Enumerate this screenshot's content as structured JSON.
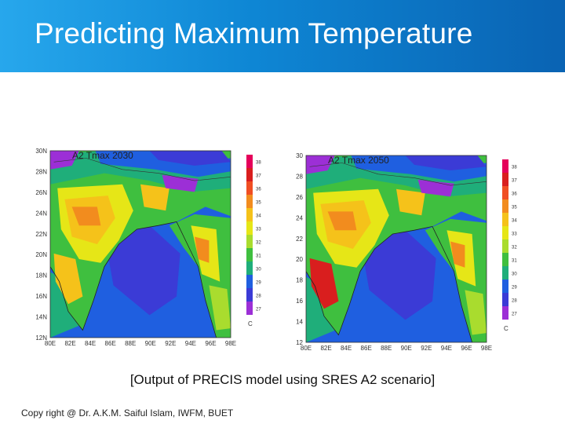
{
  "slide": {
    "title": "Predicting Maximum Temperature",
    "caption": "[Output of PRECIS model using SRES A2 scenario]",
    "footer": "Copy right @ Dr. A.K.M. Saiful Islam, IWFM, BUET"
  },
  "maps": [
    {
      "title": "A2 Tmax 2030",
      "lat_labels": [
        "30N",
        "28N",
        "26N",
        "24N",
        "22N",
        "20N",
        "18N",
        "16N",
        "14N",
        "12N"
      ],
      "lon_labels": [
        "80E",
        "82E",
        "84E",
        "86E",
        "88E",
        "90E",
        "92E",
        "94E",
        "96E",
        "98E"
      ],
      "unit": "C",
      "legend_values": [
        "38",
        "37",
        "36",
        "35",
        "34",
        "33",
        "32",
        "31",
        "30",
        "29",
        "28",
        "27"
      ]
    },
    {
      "title": "A2 Tmax 2050",
      "lat_labels": [
        "30",
        "28",
        "26",
        "24",
        "22",
        "20",
        "18",
        "16",
        "14",
        "12"
      ],
      "lon_labels": [
        "80E",
        "82E",
        "84E",
        "86E",
        "88E",
        "90E",
        "92E",
        "94E",
        "96E",
        "98E"
      ],
      "unit": "C",
      "legend_values": [
        "38",
        "37",
        "36",
        "35",
        "34",
        "33",
        "32",
        "31",
        "30",
        "29",
        "28",
        "27"
      ]
    }
  ],
  "colorscale": [
    "#e5005a",
    "#d91e1e",
    "#f04e23",
    "#f28c1e",
    "#f5c21a",
    "#e6e617",
    "#a9dc2e",
    "#3fbf3f",
    "#1fae7a",
    "#1f5fe0",
    "#3b3bd6",
    "#9c2fd6"
  ]
}
